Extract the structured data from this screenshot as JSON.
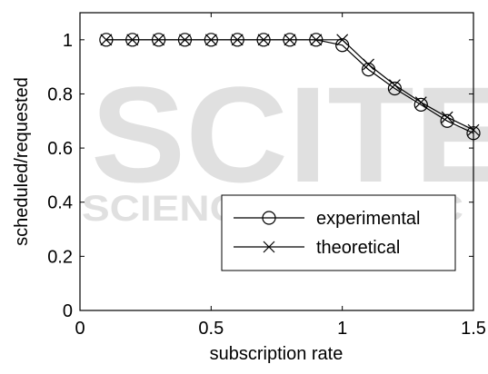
{
  "watermark": {
    "main": "SCITE",
    "sub": "SCIENCE AND TEC"
  },
  "chart_data": {
    "type": "line",
    "xlabel": "subscription rate",
    "ylabel": "scheduled/requested",
    "xlim": [
      0,
      1.5
    ],
    "ylim": [
      0,
      1.1
    ],
    "xticks": [
      0,
      0.5,
      1,
      1.5
    ],
    "xtick_labels": [
      "0",
      "0.5",
      "1",
      "1.5"
    ],
    "yticks": [
      0,
      0.2,
      0.4,
      0.6,
      0.8,
      1
    ],
    "ytick_labels": [
      "0",
      "0.2",
      "0.4",
      "0.6",
      "0.8",
      "1"
    ],
    "grid": false,
    "legend_position": "bottom-right",
    "line_color": "#000000",
    "x": [
      0.1,
      0.2,
      0.3,
      0.4,
      0.5,
      0.6,
      0.7,
      0.8,
      0.9,
      1.0,
      1.1,
      1.2,
      1.3,
      1.4,
      1.5
    ],
    "series": [
      {
        "name": "experimental",
        "marker": "circle",
        "values": [
          1,
          1,
          1,
          1,
          1,
          1,
          1,
          1,
          1,
          0.98,
          0.89,
          0.82,
          0.76,
          0.7,
          0.655
        ]
      },
      {
        "name": "theoretical",
        "marker": "x",
        "values": [
          1,
          1,
          1,
          1,
          1,
          1,
          1,
          1,
          1,
          1.0,
          0.909,
          0.833,
          0.769,
          0.714,
          0.667
        ]
      }
    ]
  }
}
